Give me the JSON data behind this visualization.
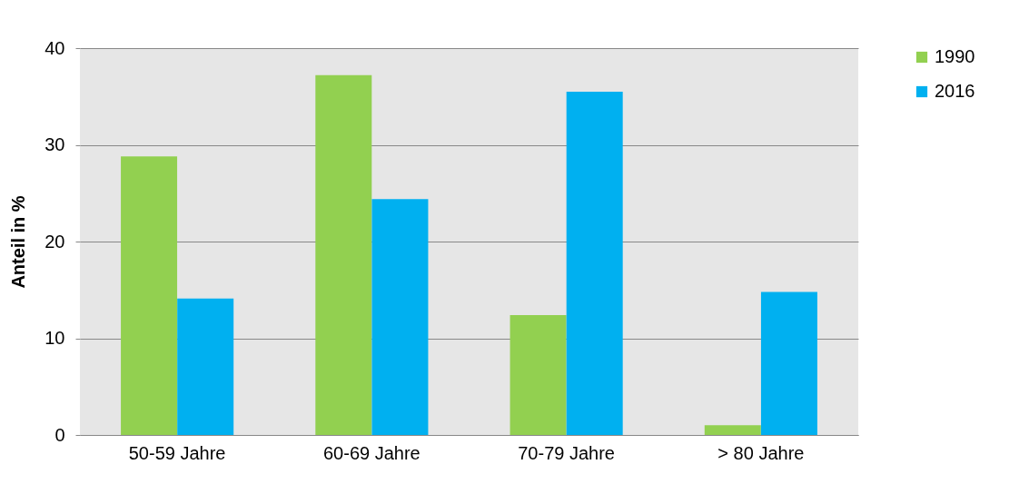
{
  "chart_data": {
    "type": "bar",
    "ylabel": "Anteil in %",
    "categories": [
      "50-59 Jahre",
      "60-69 Jahre",
      "70-79 Jahre",
      "> 80 Jahre"
    ],
    "series": [
      {
        "name": "1990",
        "color": "#92d050",
        "values": [
          28.8,
          37.2,
          12.4,
          1.0
        ]
      },
      {
        "name": "2016",
        "color": "#00b0f0",
        "values": [
          14.1,
          24.4,
          35.5,
          14.8
        ]
      }
    ],
    "ylim": [
      0,
      40
    ],
    "yticks": [
      0,
      10,
      20,
      30,
      40
    ],
    "grid": "y",
    "legend": "right"
  }
}
